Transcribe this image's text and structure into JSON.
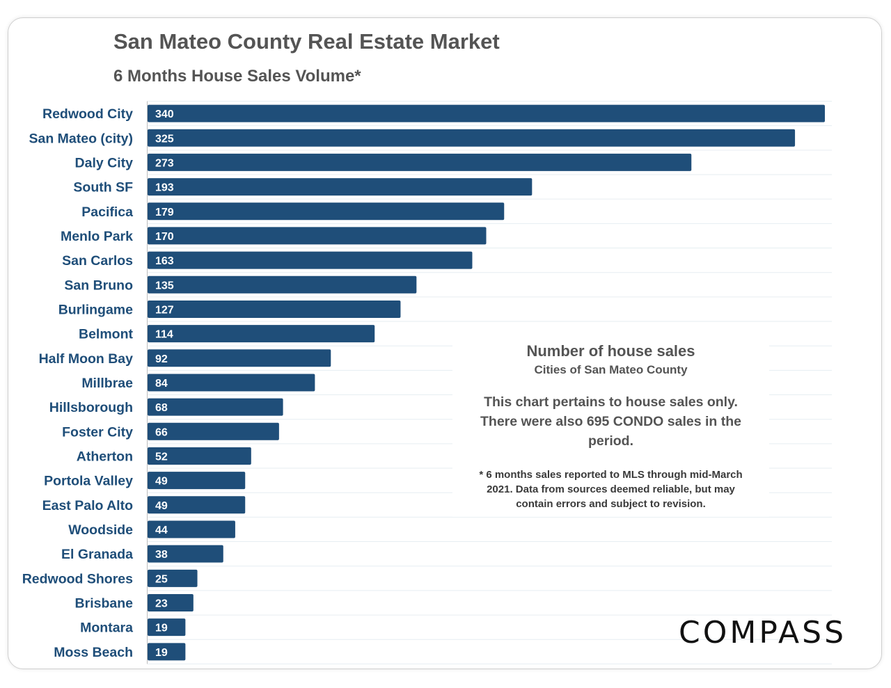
{
  "chart_data": {
    "type": "bar",
    "orientation": "horizontal",
    "title": "San Mateo County Real Estate Market",
    "subtitle": "6 Months House Sales Volume*",
    "categories": [
      "Redwood City",
      "San Mateo (city)",
      "Daly City",
      "South SF",
      "Pacifica",
      "Menlo Park",
      "San Carlos",
      "San Bruno",
      "Burlingame",
      "Belmont",
      "Half Moon Bay",
      "Millbrae",
      "Hillsborough",
      "Foster City",
      "Atherton",
      "Portola Valley",
      "East Palo Alto",
      "Woodside",
      "El Granada",
      "Redwood Shores",
      "Brisbane",
      "Montara",
      "Moss Beach"
    ],
    "values": [
      340,
      325,
      273,
      193,
      179,
      170,
      163,
      135,
      127,
      114,
      92,
      84,
      68,
      66,
      52,
      49,
      49,
      44,
      38,
      25,
      23,
      19,
      19
    ],
    "xlim": [
      0,
      345
    ],
    "xlabel": "",
    "ylabel": "",
    "data_labels": "inside-start",
    "grid": true,
    "bar_color": "#1f4e79"
  },
  "annotation": {
    "heading": "Number of house sales",
    "subheading": "Cities of San Mateo County",
    "paragraph": "This chart pertains to house sales only. There were also 695 CONDO sales in the period.",
    "footnote": "* 6 months sales reported to MLS through mid-March 2021. Data from sources deemed reliable, but may contain errors and subject to revision."
  },
  "brand": {
    "logo_text": "COMPASS"
  },
  "colors": {
    "title": "#545454",
    "bar": "#1f4e79",
    "category_label": "#1f4e79",
    "grid": "#e6eef2"
  }
}
